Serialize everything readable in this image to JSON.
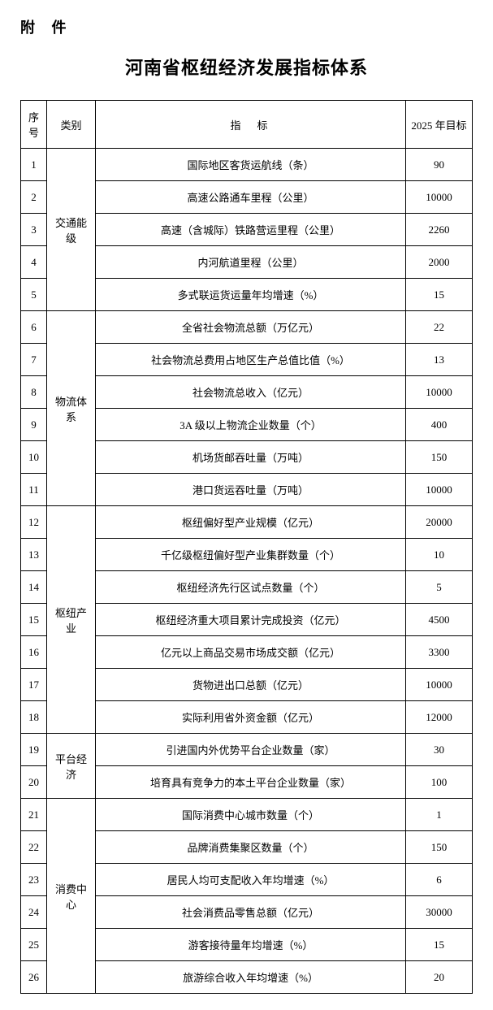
{
  "attachment_label": "附 件",
  "title": "河南省枢纽经济发展指标体系",
  "headers": {
    "seq": "序号",
    "category": "类别",
    "indicator": "指标",
    "target": "2025 年目标"
  },
  "categories": [
    {
      "name": "交通能级",
      "rowspan": 5,
      "rows": [
        {
          "seq": "1",
          "indicator": "国际地区客货运航线（条）",
          "target": "90"
        },
        {
          "seq": "2",
          "indicator": "高速公路通车里程（公里）",
          "target": "10000"
        },
        {
          "seq": "3",
          "indicator": "高速（含城际）铁路营运里程（公里）",
          "target": "2260"
        },
        {
          "seq": "4",
          "indicator": "内河航道里程（公里）",
          "target": "2000"
        },
        {
          "seq": "5",
          "indicator": "多式联运货运量年均增速（%）",
          "target": "15"
        }
      ]
    },
    {
      "name": "物流体系",
      "rowspan": 6,
      "rows": [
        {
          "seq": "6",
          "indicator": "全省社会物流总额（万亿元）",
          "target": "22"
        },
        {
          "seq": "7",
          "indicator": "社会物流总费用占地区生产总值比值（%）",
          "target": "13"
        },
        {
          "seq": "8",
          "indicator": "社会物流总收入（亿元）",
          "target": "10000"
        },
        {
          "seq": "9",
          "indicator": "3A 级以上物流企业数量（个）",
          "target": "400"
        },
        {
          "seq": "10",
          "indicator": "机场货邮吞吐量（万吨）",
          "target": "150"
        },
        {
          "seq": "11",
          "indicator": "港口货运吞吐量（万吨）",
          "target": "10000"
        }
      ]
    },
    {
      "name": "枢纽产业",
      "rowspan": 7,
      "rows": [
        {
          "seq": "12",
          "indicator": "枢纽偏好型产业规模（亿元）",
          "target": "20000"
        },
        {
          "seq": "13",
          "indicator": "千亿级枢纽偏好型产业集群数量（个）",
          "target": "10"
        },
        {
          "seq": "14",
          "indicator": "枢纽经济先行区试点数量（个）",
          "target": "5"
        },
        {
          "seq": "15",
          "indicator": "枢纽经济重大项目累计完成投资（亿元）",
          "target": "4500"
        },
        {
          "seq": "16",
          "indicator": "亿元以上商品交易市场成交额（亿元）",
          "target": "3300"
        },
        {
          "seq": "17",
          "indicator": "货物进出口总额（亿元）",
          "target": "10000"
        },
        {
          "seq": "18",
          "indicator": "实际利用省外资金额（亿元）",
          "target": "12000"
        }
      ]
    },
    {
      "name": "平台经济",
      "rowspan": 2,
      "rows": [
        {
          "seq": "19",
          "indicator": "引进国内外优势平台企业数量（家）",
          "target": "30"
        },
        {
          "seq": "20",
          "indicator": "培育具有竞争力的本土平台企业数量（家）",
          "target": "100"
        }
      ]
    },
    {
      "name": "消费中心",
      "rowspan": 6,
      "rows": [
        {
          "seq": "21",
          "indicator": "国际消费中心城市数量（个）",
          "target": "1"
        },
        {
          "seq": "22",
          "indicator": "品牌消费集聚区数量（个）",
          "target": "150"
        },
        {
          "seq": "23",
          "indicator": "居民人均可支配收入年均增速（%）",
          "target": "6"
        },
        {
          "seq": "24",
          "indicator": "社会消费品零售总额（亿元）",
          "target": "30000"
        },
        {
          "seq": "25",
          "indicator": "游客接待量年均增速（%）",
          "target": "15"
        },
        {
          "seq": "26",
          "indicator": "旅游综合收入年均增速（%）",
          "target": "20"
        }
      ]
    }
  ]
}
